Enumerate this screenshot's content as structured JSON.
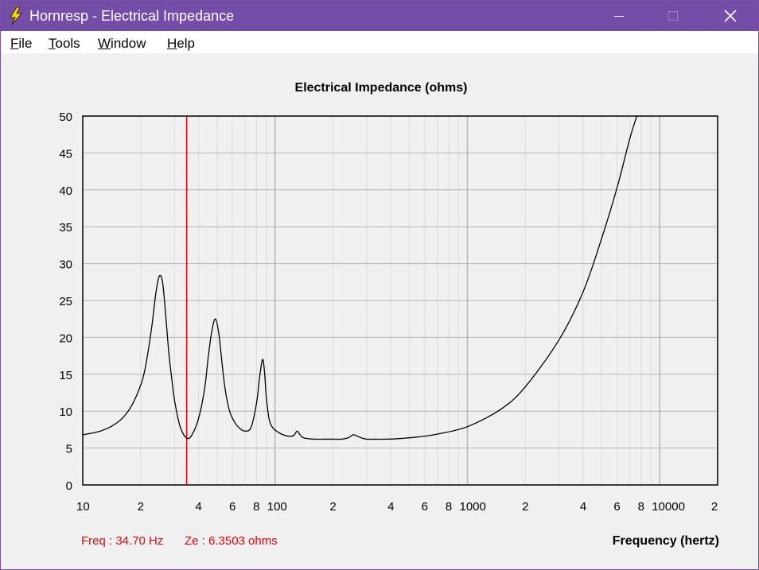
{
  "window": {
    "title": "Hornresp - Electrical Impedance",
    "titlebar_color": "#744da9",
    "controls": [
      "minimize-icon",
      "maximize-icon",
      "close-icon"
    ]
  },
  "menu": {
    "items": [
      {
        "label": "File",
        "mnemonic": "F",
        "rest": "ile"
      },
      {
        "label": "Tools",
        "mnemonic": "T",
        "rest": "ools"
      },
      {
        "label": "Window",
        "mnemonic": "W",
        "rest": "indow"
      },
      {
        "label": "Help",
        "mnemonic": "H",
        "rest": "elp"
      }
    ]
  },
  "chart": {
    "title": "Electrical Impedance (ohms)",
    "xlabel": "Frequency (hertz)",
    "cursor_readout": {
      "freq": "Freq : 34.70 Hz",
      "ze": "Ze : 6.3503 ohms",
      "color": "#e8000b"
    }
  },
  "chart_data": {
    "type": "line",
    "title": "Electrical Impedance (ohms)",
    "xlabel": "Frequency (hertz)",
    "ylabel": "",
    "xscale": "log",
    "xlim": [
      10,
      20000
    ],
    "ylim": [
      0,
      50
    ],
    "grid": true,
    "x_tick_labels": [
      "10",
      "2",
      "4",
      "6",
      "8",
      "100",
      "2",
      "4",
      "6",
      "8",
      "1000",
      "2",
      "4",
      "6",
      "8",
      "10000",
      "2"
    ],
    "y_ticks": [
      0,
      5,
      10,
      15,
      20,
      25,
      30,
      35,
      40,
      45,
      50
    ],
    "line_color": "#000000",
    "cursor_color": "#e8000b",
    "cursor": {
      "x": 34.7,
      "y": 6.3503
    },
    "series": [
      {
        "x": [
          10,
          12,
          14,
          16,
          18,
          20,
          21,
          22,
          23,
          24,
          25,
          26,
          27,
          28,
          29,
          30,
          32,
          34.7,
          37,
          40,
          43,
          45,
          47,
          49,
          51,
          53,
          55,
          58,
          62,
          66,
          70,
          75,
          80,
          83,
          86,
          88,
          90,
          93,
          97,
          103,
          110,
          118,
          125,
          130,
          134,
          138,
          145,
          160,
          180,
          200,
          220,
          240,
          255,
          268,
          280,
          300,
          330,
          380,
          450,
          550,
          700,
          1000,
          1500,
          2000,
          3000,
          4000,
          5000,
          6000,
          7000,
          7600
        ],
        "y": [
          6.8,
          7.2,
          7.9,
          9.0,
          10.8,
          13.5,
          15.5,
          18.5,
          22.0,
          26.0,
          28.3,
          27.5,
          23.0,
          18.0,
          14.5,
          11.5,
          8.0,
          6.35,
          6.8,
          9.0,
          13.0,
          17.5,
          21.0,
          22.5,
          20.5,
          16.5,
          13.0,
          10.0,
          8.4,
          7.6,
          7.3,
          7.8,
          11.0,
          14.5,
          17.0,
          15.5,
          12.0,
          9.0,
          7.8,
          7.2,
          6.8,
          6.6,
          6.7,
          7.3,
          6.9,
          6.5,
          6.3,
          6.2,
          6.2,
          6.2,
          6.2,
          6.4,
          6.8,
          6.6,
          6.4,
          6.2,
          6.2,
          6.2,
          6.3,
          6.5,
          6.9,
          7.9,
          10.3,
          13.3,
          19.7,
          26.2,
          33.5,
          40.3,
          47.0,
          50.0
        ]
      }
    ]
  }
}
